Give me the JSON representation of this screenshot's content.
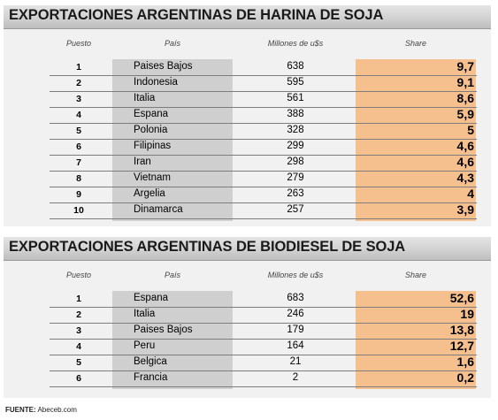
{
  "harina": {
    "title": "EXPORTACIONES ARGENTINAS DE HARINA DE SOJA",
    "headers": {
      "puesto": "Puesto",
      "pais": "País",
      "millones": "Millones de u$s",
      "share": "Share"
    },
    "rows": [
      {
        "rank": "1",
        "country": "Paises Bajos",
        "value": "638",
        "share": "9,7"
      },
      {
        "rank": "2",
        "country": "Indonesia",
        "value": "595",
        "share": "9,1"
      },
      {
        "rank": "3",
        "country": "Italia",
        "value": "561",
        "share": "8,6"
      },
      {
        "rank": "4",
        "country": "Espana",
        "value": "388",
        "share": "5,9"
      },
      {
        "rank": "5",
        "country": "Polonia",
        "value": "328",
        "share": "5"
      },
      {
        "rank": "6",
        "country": "Filipinas",
        "value": "299",
        "share": "4,6"
      },
      {
        "rank": "7",
        "country": "Iran",
        "value": "298",
        "share": "4,6"
      },
      {
        "rank": "8",
        "country": "Vietnam",
        "value": "279",
        "share": "4,3"
      },
      {
        "rank": "9",
        "country": "Argelia",
        "value": "263",
        "share": "4"
      },
      {
        "rank": "10",
        "country": "Dinamarca",
        "value": "257",
        "share": "3,9"
      }
    ]
  },
  "biodiesel": {
    "title": "EXPORTACIONES ARGENTINAS DE BIODIESEL DE SOJA",
    "headers": {
      "puesto": "Puesto",
      "pais": "País",
      "millones": "Millones de u$s",
      "share": "Share"
    },
    "rows": [
      {
        "rank": "1",
        "country": "Espana",
        "value": "683",
        "share": "52,6"
      },
      {
        "rank": "2",
        "country": "Italia",
        "value": "246",
        "share": "19"
      },
      {
        "rank": "3",
        "country": "Paises Bajos",
        "value": "179",
        "share": "13,8"
      },
      {
        "rank": "4",
        "country": "Peru",
        "value": "164",
        "share": "12,7"
      },
      {
        "rank": "5",
        "country": "Belgica",
        "value": "21",
        "share": "1,6"
      },
      {
        "rank": "6",
        "country": "Francia",
        "value": "2",
        "share": "0,2"
      }
    ]
  },
  "source": {
    "label": "FUENTE:",
    "value": "Abeceb.com"
  },
  "colors": {
    "grey_column": "#cfcfcf",
    "share_column": "#f5c08e",
    "panel_bg": "#f1f1f1"
  }
}
